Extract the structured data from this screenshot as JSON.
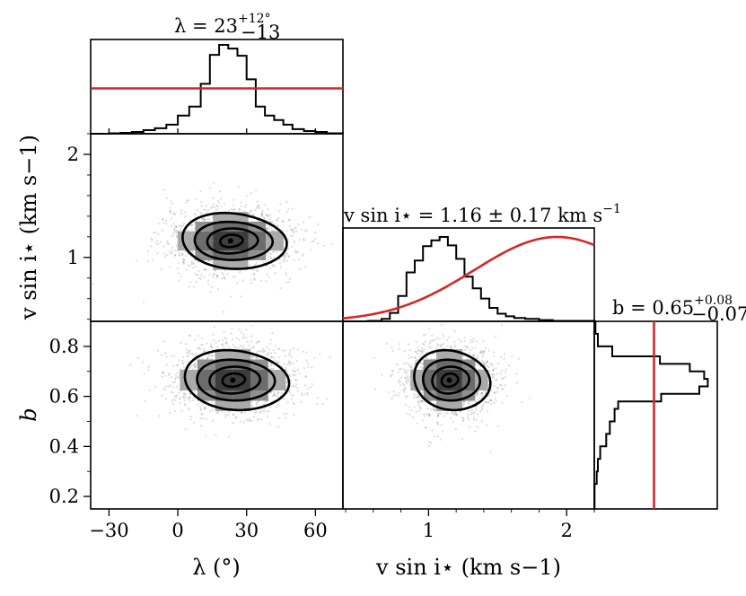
{
  "chart_data": {
    "type": "corner",
    "parameters": [
      {
        "key": "lambda",
        "axis_label": "λ (°)",
        "title": "λ = 23 +12 −13 °",
        "title_value": "λ = 23",
        "title_upper": "+12°",
        "title_lower": "−13",
        "range": [
          -38,
          72
        ],
        "ticks": [
          -30,
          0,
          30,
          60
        ],
        "tick_labels": [
          "−30",
          "0",
          "30",
          "60"
        ],
        "median": 23,
        "err_plus": 12,
        "err_minus": 13,
        "hist_edges": [
          -38,
          -30,
          -25,
          -20,
          -15,
          -10,
          -5,
          0,
          5,
          10,
          14,
          18,
          22,
          26,
          30,
          34,
          38,
          42,
          46,
          50,
          55,
          60,
          65,
          72
        ],
        "hist_counts": [
          0,
          0.005,
          0.01,
          0.02,
          0.04,
          0.06,
          0.1,
          0.2,
          0.3,
          0.55,
          0.87,
          0.98,
          0.94,
          0.86,
          0.6,
          0.3,
          0.2,
          0.15,
          0.1,
          0.05,
          0.03,
          0.02,
          0.005
        ],
        "prior": {
          "shape": "uniform",
          "level": 0.5
        }
      },
      {
        "key": "vsini",
        "axis_label": "v sin i⋆ (km s−1)",
        "title": "v sin i⋆ = 1.16 ± 0.17 km s−1",
        "title_text": "v sin i⋆ = 1.16 ± 0.17 km s",
        "title_sup": "−1",
        "range": [
          0.38,
          2.2
        ],
        "ticks": [
          1,
          2
        ],
        "tick_labels": [
          "1",
          "2"
        ],
        "minor_ticks": [
          0.4,
          0.6,
          0.8,
          1.2,
          1.4,
          1.6,
          1.8,
          2.2
        ],
        "median": 1.16,
        "err": 0.17,
        "hist_edges": [
          0.38,
          0.56,
          0.66,
          0.72,
          0.78,
          0.84,
          0.9,
          0.96,
          1.02,
          1.08,
          1.14,
          1.2,
          1.26,
          1.32,
          1.38,
          1.44,
          1.5,
          1.56,
          1.62,
          1.7,
          1.8,
          1.9,
          2.2
        ],
        "hist_counts": [
          0,
          0.005,
          0.03,
          0.1,
          0.3,
          0.58,
          0.72,
          0.89,
          0.96,
          1.0,
          0.9,
          0.74,
          0.53,
          0.39,
          0.27,
          0.16,
          0.09,
          0.06,
          0.04,
          0.03,
          0.015,
          0.005
        ],
        "prior": {
          "shape": "gaussian",
          "mean": 1.93,
          "sigma": 0.6,
          "peak": 1.0
        }
      },
      {
        "key": "b",
        "axis_label": "b",
        "title": "b = 0.65 +0.08 −0.07",
        "title_value": "b = 0.65",
        "title_upper": "+0.08",
        "title_lower": "−0.07",
        "range": [
          0.15,
          0.9
        ],
        "ticks": [
          0.2,
          0.4,
          0.6,
          0.8
        ],
        "tick_labels": [
          "0.2",
          "0.4",
          "0.6",
          "0.8"
        ],
        "minor_ticks": [
          0.3,
          0.5,
          0.7
        ],
        "median": 0.65,
        "err_plus": 0.08,
        "err_minus": 0.07,
        "hist_edges": [
          0.15,
          0.25,
          0.3,
          0.35,
          0.4,
          0.45,
          0.5,
          0.55,
          0.58,
          0.61,
          0.64,
          0.67,
          0.7,
          0.73,
          0.76,
          0.8,
          0.85,
          0.9
        ],
        "hist_counts": [
          0.002,
          0.02,
          0.03,
          0.05,
          0.1,
          0.13,
          0.17,
          0.2,
          0.56,
          0.88,
          0.95,
          0.92,
          0.8,
          0.55,
          0.15,
          0.03,
          0.01
        ],
        "prior": {
          "shape": "uniform",
          "level": 0.5
        }
      }
    ],
    "panels_2d": [
      {
        "x": "lambda",
        "y": "vsini",
        "center": [
          23,
          1.16
        ],
        "sigma": [
          14,
          0.17
        ]
      },
      {
        "x": "lambda",
        "y": "b",
        "center": [
          24,
          0.665
        ],
        "sigma": [
          14,
          0.075
        ]
      },
      {
        "x": "vsini",
        "y": "b",
        "center": [
          1.15,
          0.665
        ],
        "sigma": [
          0.17,
          0.075
        ]
      }
    ]
  }
}
